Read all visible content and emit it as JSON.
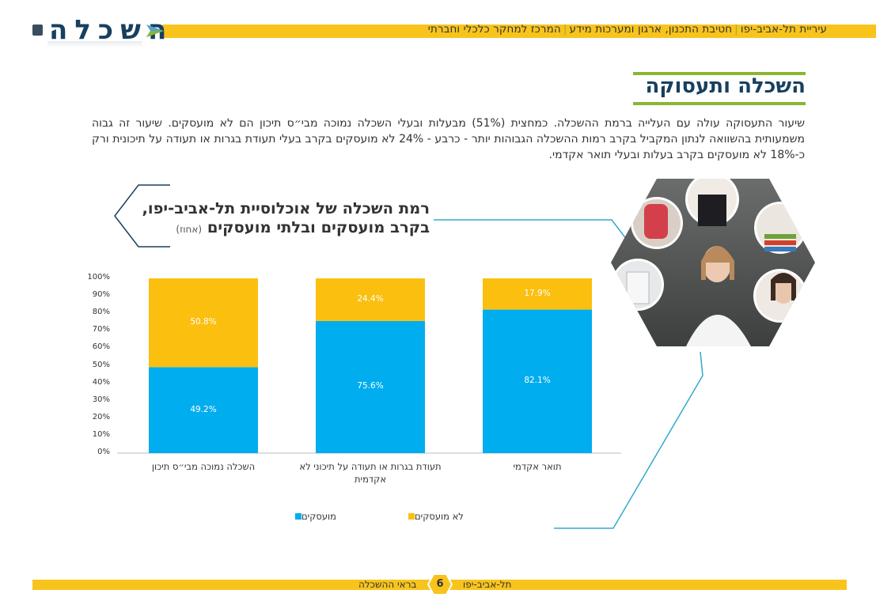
{
  "logo": {
    "text": "השכלה",
    "colors": {
      "text": "#183f5e",
      "arrow": "#8ab533",
      "arrow_alt": "#4fa3d1"
    }
  },
  "header": {
    "org": "עיריית תל-אביב-יפו",
    "division": "חטיבת התכנון, ארגון ומערכות מידע",
    "center": "המרכז למחקר כלכלי וחברתי",
    "separator": "|"
  },
  "section": {
    "title": "השכלה ותעסוקה"
  },
  "paragraph": "שיעור התעסוקה עולה עם העלייה ברמת ההשכלה. כמחצית (51%) מבעלות ובעלי השכלה נמוכה מבי״ס תיכון הם לא מועסקים. שיעור זה גבוה משמעותית בהשוואה לנתון המקביל בקרב רמות ההשכלה הגבוהות יותר - כרבע - 24% לא מועסקים בקרב בעלי תעודת בגרות או תעודה על תיכונית ורק כ-18% לא מועסקים בקרב בעלות ובעלי תואר אקדמי.",
  "chart_title": {
    "line1": "רמת השכלה של אוכלוסיית תל-אביב-יפו,",
    "line2": "בקרב מועסקים ובלתי מועסקים",
    "unit": "(אחוז)"
  },
  "chart_data": {
    "type": "bar",
    "stacked": true,
    "categories": [
      "השכלה נמוכה מבי״ס תיכון",
      "תעודת בגרות או תעודה על תיכוני לא אקדמית",
      "תואר אקדמי"
    ],
    "series": [
      {
        "name": "מועסקים",
        "values": [
          49.2,
          75.6,
          82.1
        ],
        "labels": [
          "49.2%",
          "75.6%",
          "82.1%"
        ],
        "color": "#00adef"
      },
      {
        "name": "לא מועסקים",
        "values": [
          50.8,
          24.4,
          17.9
        ],
        "labels": [
          "50.8%",
          "24.4%",
          "17.9%"
        ],
        "color": "#fbbf10"
      }
    ],
    "yticks": [
      "0%",
      "10%",
      "20%",
      "30%",
      "40%",
      "50%",
      "60%",
      "70%",
      "80%",
      "90%",
      "100%"
    ],
    "ylim": [
      0,
      100
    ],
    "legend_placement": "bottom",
    "grid": false
  },
  "footer": {
    "left_text": "בראי ההשכלה",
    "right_text": "תל-אביב-יפו",
    "page_number": "6"
  },
  "colors": {
    "accent_yellow": "#f8c41c",
    "accent_green": "#8ab533",
    "title_navy": "#183f5e",
    "connector": "#33a9cf"
  },
  "icons": {
    "photo": "hexagon-photo-collage",
    "page-badge": "hexagon-badge"
  }
}
